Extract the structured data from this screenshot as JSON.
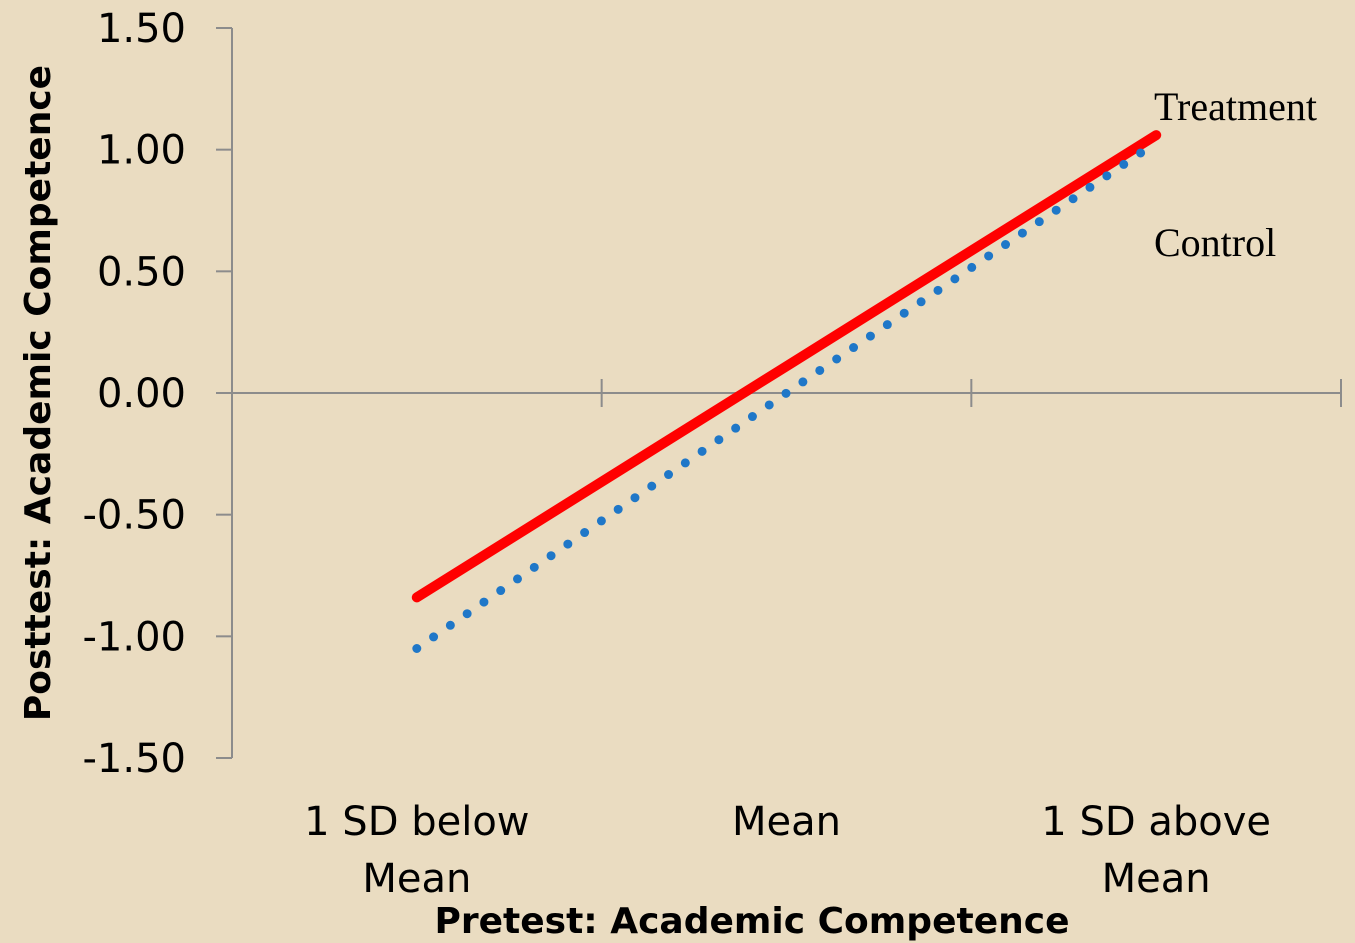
{
  "chart_data": {
    "type": "line",
    "title": "",
    "xlabel": "Pretest:  Academic Competence",
    "ylabel": "Posttest:  Academic Competence",
    "categories": [
      [
        "1 SD below",
        "Mean"
      ],
      [
        "Mean"
      ],
      [
        "1 SD above",
        "Mean"
      ]
    ],
    "ylim": [
      -1.5,
      1.5
    ],
    "y_ticks": [
      "1.50",
      "1.00",
      "0.50",
      "0.00",
      "-0.50",
      "-1.00",
      "-1.50"
    ],
    "y_tick_values": [
      1.5,
      1.0,
      0.5,
      0.0,
      -0.5,
      -1.0,
      -1.5
    ],
    "series": [
      {
        "name": "Treatment",
        "values": [
          -0.84,
          0.11,
          1.06
        ],
        "color": "#FF0000",
        "style": "solid"
      },
      {
        "name": "Control",
        "values": [
          -1.05,
          0.0,
          1.03
        ],
        "color": "#1F77C8",
        "style": "dotted"
      }
    ],
    "grid": false,
    "legend": "inline-right"
  }
}
